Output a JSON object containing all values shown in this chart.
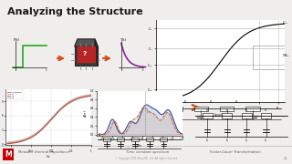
{
  "title": "Analyzing the Structure",
  "title_fontsize": 8,
  "bg_color": "#f0eeec",
  "dark_color": "#1a1a1a",
  "orange_color": "#d4521a",
  "green_color": "#22aa22",
  "purple_color": "#882299",
  "red_color": "#cc3333",
  "gray_color": "#888888",
  "light_gray": "#e8e8e8",
  "bottom_labels": [
    "Measure thermal impedance",
    "Time constant spectrum",
    "Foster-Cauer Transformation"
  ],
  "copyright_text": "© Copyright 2021 Maya RTI, Ltd. All rights reserved.",
  "page_num": "21",
  "mentor_red": "#cc0000",
  "curve_colors": [
    "#cc4444",
    "#ff8844",
    "#884444",
    "#aaaaaa"
  ],
  "white": "#ffffff"
}
